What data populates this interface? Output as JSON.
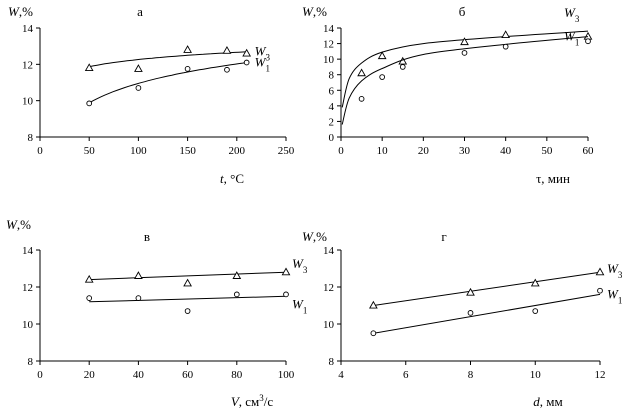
{
  "chart_data": [
    {
      "type": "scatter",
      "letter": "а",
      "ylabel": [
        "W",
        ",%"
      ],
      "xlabel": [
        "t",
        ", °С"
      ],
      "xlim": [
        0,
        250
      ],
      "ylim": [
        8,
        14
      ],
      "xticks": [
        0,
        50,
        100,
        150,
        200,
        250
      ],
      "yticks": [
        8,
        10,
        12,
        14
      ],
      "fit": "log",
      "series": [
        {
          "name": "W3",
          "marker": "triangle",
          "x": [
            50,
            100,
            150,
            190,
            210
          ],
          "y": [
            11.8,
            11.75,
            12.8,
            12.75,
            12.6
          ],
          "fit_y": [
            11.9,
            12.2,
            12.5,
            12.65,
            12.7
          ]
        },
        {
          "name": "W1",
          "marker": "circle",
          "x": [
            50,
            100,
            150,
            190,
            210
          ],
          "y": [
            9.85,
            10.7,
            11.75,
            11.7,
            12.1
          ],
          "fit_y": [
            9.9,
            10.9,
            11.6,
            11.95,
            12.1
          ]
        }
      ]
    },
    {
      "type": "scatter",
      "letter": "б",
      "ylabel": [
        "W",
        ",%"
      ],
      "xlabel": [
        "τ",
        ", мин"
      ],
      "xlim": [
        0,
        60
      ],
      "ylim": [
        0,
        14
      ],
      "xticks": [
        0,
        10,
        20,
        30,
        40,
        50,
        60
      ],
      "yticks": [
        0,
        2,
        4,
        6,
        8,
        10,
        12,
        14
      ],
      "fit": "power",
      "series": [
        {
          "name": "W3",
          "marker": "triangle",
          "x": [
            5,
            10,
            15,
            30,
            40,
            60
          ],
          "y": [
            8.2,
            10.4,
            9.7,
            12.2,
            13.1,
            12.9
          ],
          "fit_y": [
            3.8,
            7.5,
            9.5,
            10.9,
            12.0,
            12.9,
            13.6
          ]
        },
        {
          "name": "W1",
          "marker": "circle",
          "x": [
            5,
            10,
            15,
            30,
            40,
            60
          ],
          "y": [
            4.9,
            7.7,
            9.0,
            10.8,
            11.6,
            12.3
          ],
          "fit_y": [
            1.6,
            5.0,
            7.2,
            8.8,
            10.6,
            11.9,
            12.9
          ]
        }
      ]
    },
    {
      "type": "scatter",
      "letter": "в",
      "ylabel": [
        "W",
        ",%"
      ],
      "xlabel": [
        "V",
        ", см",
        "3",
        "/с"
      ],
      "xlim": [
        0,
        100
      ],
      "ylim": [
        8,
        14
      ],
      "xticks": [
        0,
        20,
        40,
        60,
        80,
        100
      ],
      "yticks": [
        8,
        10,
        12,
        14
      ],
      "fit": "linear",
      "series": [
        {
          "name": "W3",
          "marker": "triangle",
          "x": [
            20,
            40,
            60,
            80,
            100
          ],
          "y": [
            12.4,
            12.6,
            12.2,
            12.6,
            12.8
          ],
          "fit_y": [
            12.4,
            12.8
          ]
        },
        {
          "name": "W1",
          "marker": "circle",
          "x": [
            20,
            40,
            60,
            80,
            100
          ],
          "y": [
            11.4,
            11.4,
            10.7,
            11.6,
            11.6
          ],
          "fit_y": [
            11.2,
            11.5
          ]
        }
      ]
    },
    {
      "type": "scatter",
      "letter": "г",
      "ylabel": [
        "W",
        ",%"
      ],
      "xlabel": [
        "d",
        ", мм"
      ],
      "xlim": [
        4,
        12
      ],
      "ylim": [
        8,
        14
      ],
      "xticks": [
        4,
        6,
        8,
        10,
        12
      ],
      "yticks": [
        8,
        10,
        12,
        14
      ],
      "fit": "linear",
      "series": [
        {
          "name": "W3",
          "marker": "triangle",
          "x": [
            5,
            8,
            10,
            12
          ],
          "y": [
            11.0,
            11.7,
            12.2,
            12.8
          ],
          "fit_y": [
            11.0,
            12.8
          ]
        },
        {
          "name": "W1",
          "marker": "circle",
          "x": [
            5,
            8,
            10,
            12
          ],
          "y": [
            9.5,
            10.6,
            10.7,
            11.8
          ],
          "fit_y": [
            9.5,
            11.6
          ]
        }
      ]
    }
  ]
}
